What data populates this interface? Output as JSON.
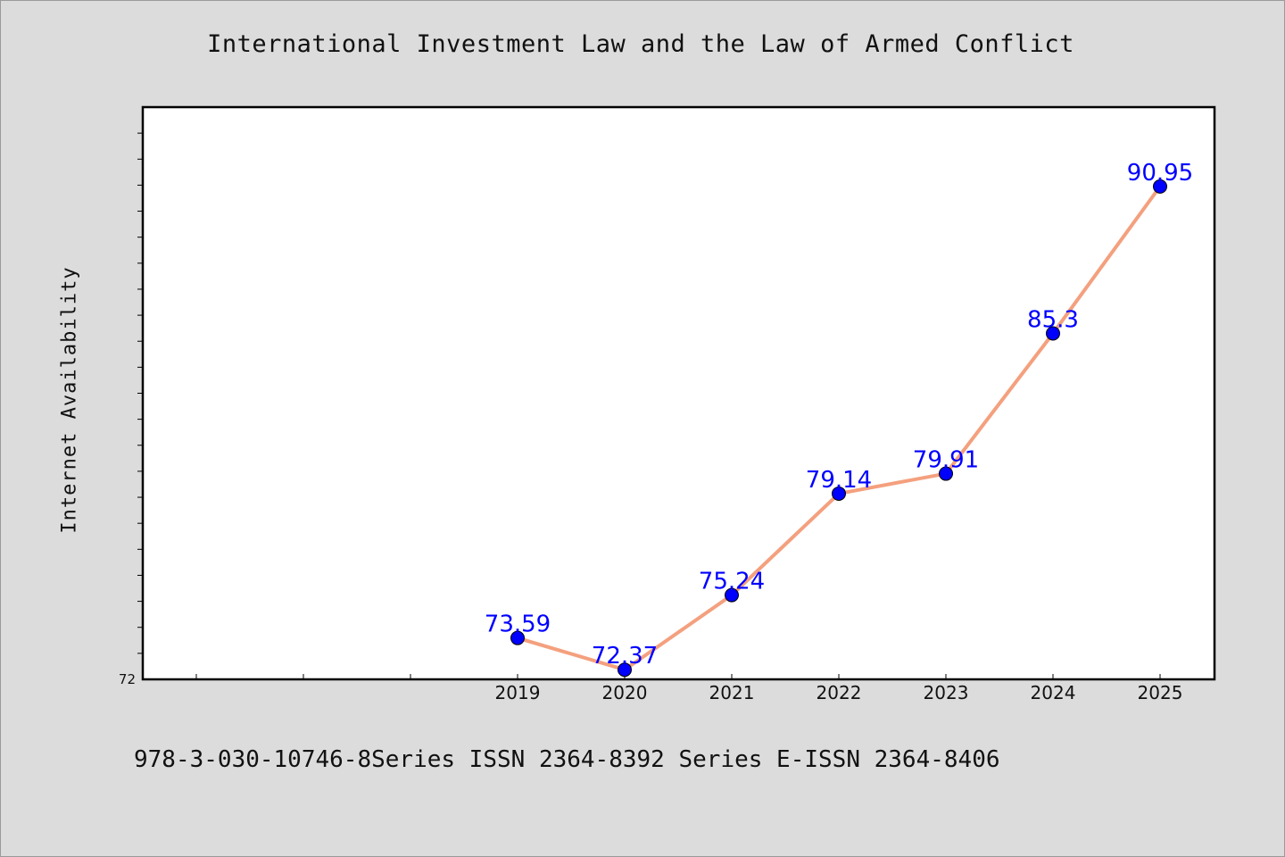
{
  "chart_data": {
    "type": "line",
    "title": "International Investment Law and the Law of Armed Conflict",
    "xlabel": "",
    "ylabel": "Internet Availability",
    "categories": [
      "2019",
      "2020",
      "2021",
      "2022",
      "2023",
      "2024",
      "2025"
    ],
    "series": [
      {
        "values": [
          73.59,
          72.37,
          75.24,
          79.14,
          79.91,
          85.3,
          90.95
        ],
        "labels": [
          "73.59",
          "72.37",
          "75.24",
          "79.14",
          "79.91",
          "85.3",
          "90.95"
        ],
        "line_color": "#f4a07e",
        "marker_color": "#0000ff"
      }
    ],
    "ylim": [
      72,
      94
    ],
    "y_tick_labels": [
      "72"
    ],
    "grid": false
  },
  "footer": {
    "text": "978-3-030-10746-8Series ISSN 2364-8392 Series E-ISSN 2364-8406"
  }
}
